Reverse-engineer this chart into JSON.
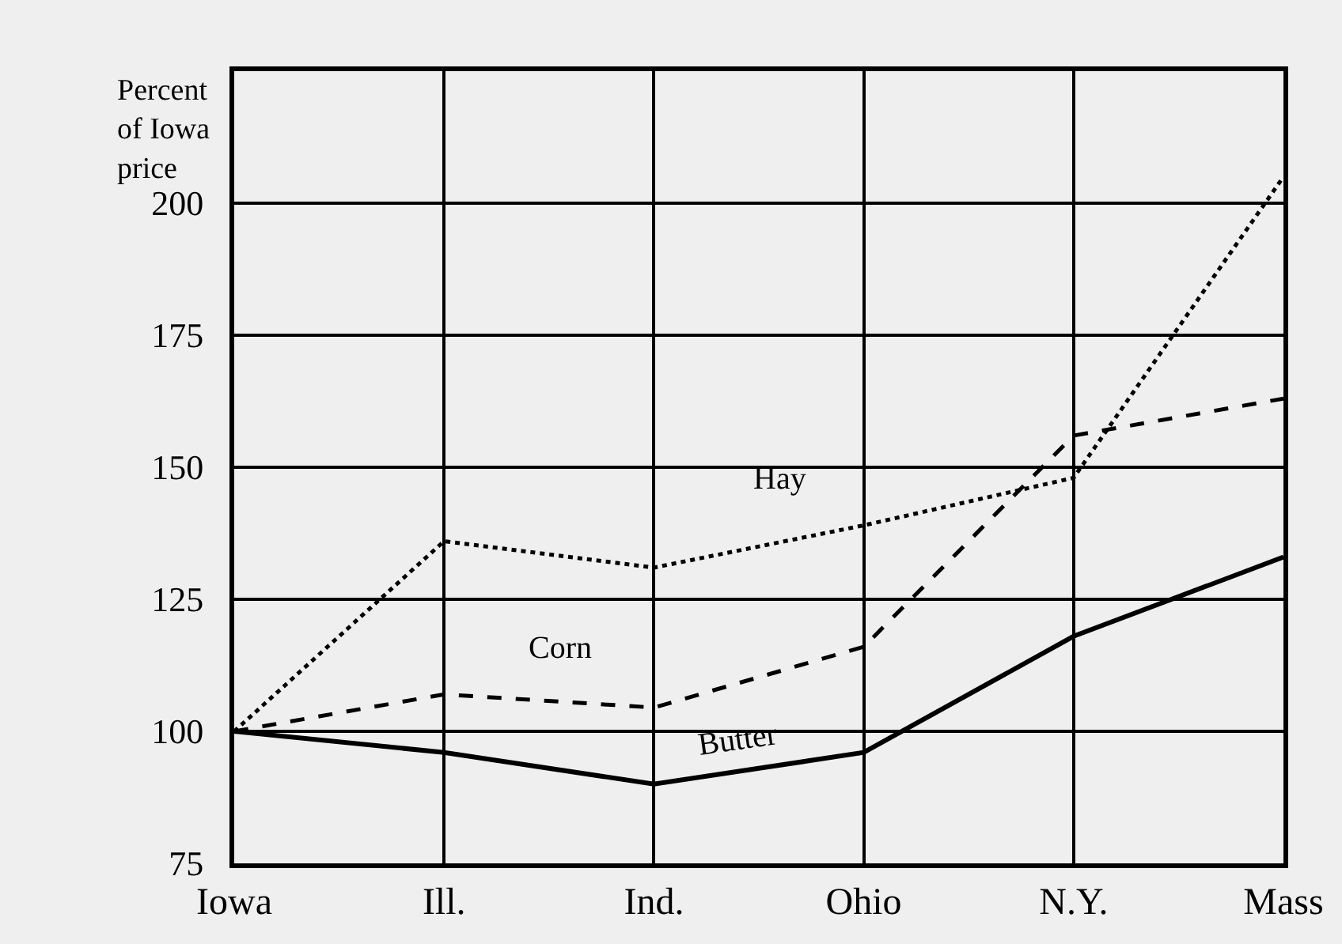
{
  "chart_data": {
    "type": "line",
    "ylabel": "Percent of Iowa price",
    "categories": [
      "Iowa",
      "Ill.",
      "Ind.",
      "Ohio",
      "N.Y.",
      "Mass"
    ],
    "series": [
      {
        "name": "Hay",
        "color": "#000000",
        "line_style": "dotted",
        "values": [
          100,
          136,
          131,
          139,
          148,
          205
        ]
      },
      {
        "name": "Corn",
        "color": "#000000",
        "line_style": "dashed",
        "values": [
          100,
          107,
          104.5,
          116,
          156,
          163
        ]
      },
      {
        "name": "Butter",
        "color": "#000000",
        "line_style": "solid",
        "values": [
          100,
          96,
          90,
          96,
          118,
          133
        ]
      }
    ],
    "ylim": [
      75,
      225
    ],
    "yticks": [
      75,
      100,
      125,
      150,
      175,
      200
    ],
    "grid": true,
    "legend": false
  }
}
